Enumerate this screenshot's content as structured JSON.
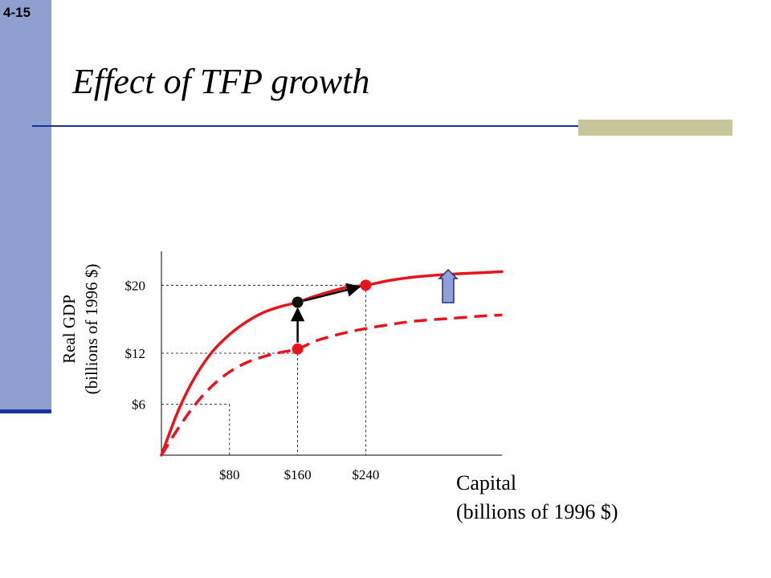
{
  "slide": {
    "number": "4-15",
    "title": "Effect of TFP growth"
  },
  "colors": {
    "sidebar": "#8f9fcf",
    "rule": "#1a2fa0",
    "accent": "#c8c59a",
    "curve": "#e8141c",
    "arrow_fill": "#8fa0d8",
    "arrow_stroke": "#2b2f6e"
  },
  "chart_data": {
    "type": "line",
    "title": "",
    "xlabel_lines": [
      "Capital",
      "(billions of 1996 $)"
    ],
    "ylabel_lines": [
      "Real GDP",
      "(billions of 1996 $)"
    ],
    "xlim": [
      0,
      400
    ],
    "ylim": [
      0,
      24
    ],
    "x_ticks": [
      {
        "value": 80,
        "label": "$80"
      },
      {
        "value": 160,
        "label": "$160"
      },
      {
        "value": 240,
        "label": "$240"
      }
    ],
    "y_ticks": [
      {
        "value": 6,
        "label": "$6"
      },
      {
        "value": 12,
        "label": "$12"
      },
      {
        "value": 20,
        "label": "$20"
      }
    ],
    "grid": false,
    "series": [
      {
        "style": "solid",
        "x": [
          0,
          20,
          40,
          60,
          80,
          100,
          120,
          140,
          160,
          180,
          200,
          220,
          240,
          270,
          300,
          340,
          380,
          400
        ],
        "y": [
          0,
          5.3,
          9.3,
          12.2,
          14.2,
          15.7,
          16.8,
          17.5,
          18.0,
          18.7,
          19.3,
          19.8,
          20.0,
          20.6,
          21.0,
          21.3,
          21.5,
          21.6
        ]
      },
      {
        "style": "dashed",
        "x": [
          0,
          20,
          40,
          60,
          80,
          100,
          120,
          140,
          160,
          180,
          200,
          220,
          240,
          270,
          300,
          340,
          380,
          400
        ],
        "y": [
          0,
          3.2,
          6.0,
          8.2,
          9.8,
          10.9,
          11.6,
          12.1,
          12.5,
          13.4,
          14.0,
          14.5,
          14.9,
          15.4,
          15.8,
          16.1,
          16.4,
          16.5
        ]
      }
    ],
    "points": [
      {
        "x": 160,
        "y": 12.5,
        "color": "#e8141c"
      },
      {
        "x": 160,
        "y": 18.0,
        "color": "#111111"
      },
      {
        "x": 240,
        "y": 20.0,
        "color": "#e8141c"
      }
    ],
    "guides": [
      {
        "x": 80,
        "y": 6
      },
      {
        "x": 160,
        "y": 12
      },
      {
        "x": 240,
        "y": 20
      }
    ],
    "arrows": [
      {
        "from": [
          160,
          12.5
        ],
        "to": [
          160,
          18.0
        ]
      },
      {
        "from": [
          160,
          18.0
        ],
        "to": [
          240,
          20.0
        ]
      }
    ],
    "annotation": "up-arrow-shift"
  }
}
